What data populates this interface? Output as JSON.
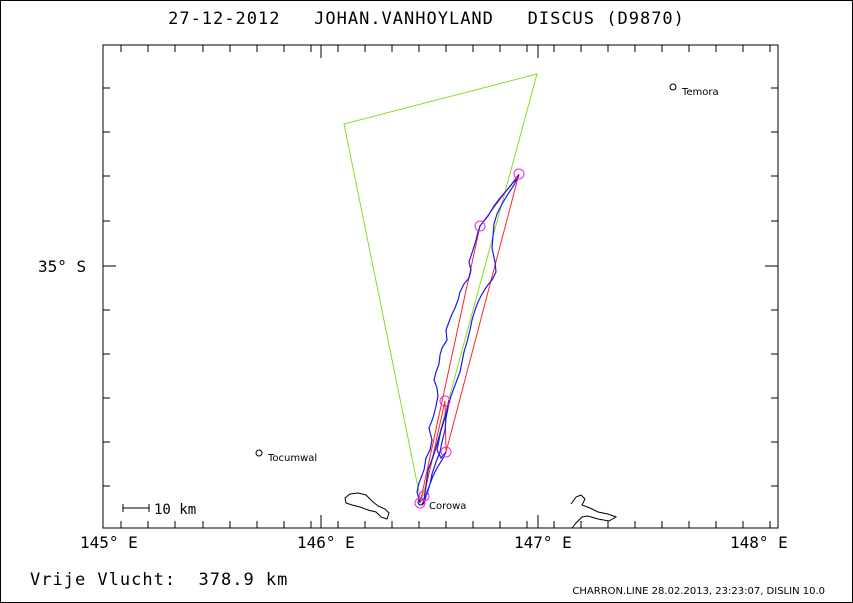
{
  "header": {
    "title": "27-12-2012   JOHAN.VANHOYLAND   DISCUS (D9870)"
  },
  "map": {
    "lat_label": "35° S",
    "lon_labels": [
      "145° E",
      "146° E",
      "147° E",
      "148° E"
    ],
    "scale_label": "10 km",
    "towns": [
      {
        "name": "Temora"
      },
      {
        "name": "Tocumwal"
      },
      {
        "name": "Corowa"
      }
    ],
    "colors": {
      "task": "#88dd22",
      "optimized": "#ff2222",
      "track": "#1a1aee",
      "turnpoints": "#ee22ee"
    }
  },
  "summary": {
    "distance_label": "Vrije Vlucht:  378.9 km"
  },
  "footer": {
    "text": "CHARRON.LINE 28.02.2013, 23:23:07, DISLIN 10.0"
  }
}
